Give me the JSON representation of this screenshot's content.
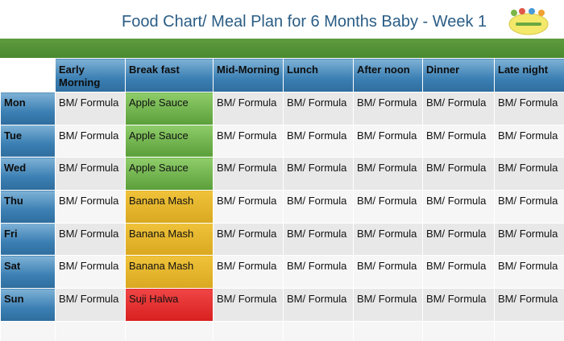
{
  "title": "Food Chart/ Meal Plan for 6 Months Baby - Week 1",
  "colors": {
    "title": "#2a5d86",
    "green_bar": "#4a8a30",
    "header_blue": "#3b7fb3",
    "apple_green": "#6fb34a",
    "banana_yellow": "#e3b52a",
    "halwa_red": "#e32b2b"
  },
  "logo_icon": "baby-food-logo-icon",
  "headers": [
    "Early Morning",
    "Break fast",
    "Mid-Morning",
    "Lunch",
    "After noon",
    "Dinner",
    "Late night"
  ],
  "rows": [
    {
      "day": "Mon",
      "cells": [
        "BM/ Formula",
        "Apple Sauce",
        "BM/ Formula",
        "BM/ Formula",
        "BM/ Formula",
        "BM/ Formula",
        "BM/ Formula"
      ]
    },
    {
      "day": "Tue",
      "cells": [
        "BM/ Formula",
        "Apple Sauce",
        "BM/ Formula",
        "BM/ Formula",
        "BM/ Formula",
        "BM/ Formula",
        "BM/ Formula"
      ]
    },
    {
      "day": "Wed",
      "cells": [
        "BM/ Formula",
        "Apple Sauce",
        "BM/ Formula",
        "BM/ Formula",
        "BM/ Formula",
        "BM/ Formula",
        "BM/ Formula"
      ]
    },
    {
      "day": "Thu",
      "cells": [
        "BM/ Formula",
        "Banana Mash",
        "BM/ Formula",
        "BM/ Formula",
        "BM/ Formula",
        "BM/ Formula",
        "BM/ Formula"
      ]
    },
    {
      "day": "Fri",
      "cells": [
        "BM/ Formula",
        "Banana Mash",
        "BM/ Formula",
        "BM/ Formula",
        "BM/ Formula",
        "BM/ Formula",
        "BM/ Formula"
      ]
    },
    {
      "day": "Sat",
      "cells": [
        "BM/ Formula",
        "Banana Mash",
        "BM/ Formula",
        "BM/ Formula",
        "BM/ Formula",
        "BM/ Formula",
        "BM/ Formula"
      ]
    },
    {
      "day": "Sun",
      "cells": [
        "BM/ Formula",
        "Suji Halwa",
        "BM/ Formula",
        "BM/ Formula",
        "BM/ Formula",
        "BM/ Formula",
        "BM/ Formula"
      ]
    }
  ]
}
